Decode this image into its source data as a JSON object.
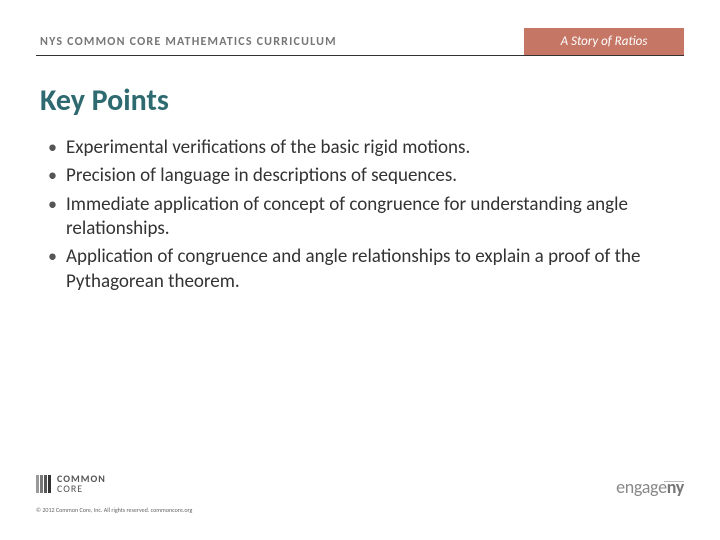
{
  "colors": {
    "header_right_bg": "#c57665",
    "title_color": "#2e6a70",
    "bullet_text": "#333333",
    "header_left_text": "#777777"
  },
  "header": {
    "left_text": "NYS COMMON CORE MATHEMATICS CURRICULUM",
    "right_text": "A Story of Ratios"
  },
  "title": "Key Points",
  "bullets": [
    "Experimental verifications of the basic rigid motions.",
    "Precision of language in descriptions of sequences.",
    "Immediate application of concept of congruence for understanding angle relationships.",
    "Application of congruence and angle relationships to explain a proof of the Pythagorean theorem."
  ],
  "footer": {
    "common_core_line1": "COMMON",
    "common_core_line2": "CORE",
    "copyright": "© 2012 Common Core, Inc. All rights reserved. commoncore.org",
    "engage_text_1": "engage",
    "engage_text_2": "ny"
  }
}
